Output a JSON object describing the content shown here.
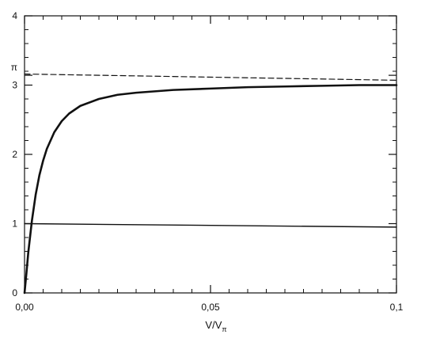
{
  "chart_data": {
    "type": "line",
    "title": "",
    "xlabel": "V/V",
    "xlabel_subscript": "π",
    "ylabel": "",
    "xlim": [
      0,
      0.1
    ],
    "ylim": [
      0,
      4
    ],
    "x_ticks": [
      {
        "value": 0,
        "label": "0,00"
      },
      {
        "value": 0.05,
        "label": "0,05"
      },
      {
        "value": 0.1,
        "label": "0,1"
      }
    ],
    "y_ticks": [
      {
        "value": 0,
        "label": "0"
      },
      {
        "value": 1,
        "label": "1"
      },
      {
        "value": 2,
        "label": "2"
      },
      {
        "value": 3,
        "label": "3"
      },
      {
        "value": 3.1416,
        "label": "π"
      },
      {
        "value": 4,
        "label": "4"
      }
    ],
    "grid": false,
    "legend": "none",
    "series": [
      {
        "style": "solid-thick",
        "color": "#111111",
        "points": [
          [
            0.0,
            0.0
          ],
          [
            0.0005,
            0.28
          ],
          [
            0.001,
            0.58
          ],
          [
            0.002,
            1.05
          ],
          [
            0.003,
            1.42
          ],
          [
            0.004,
            1.7
          ],
          [
            0.005,
            1.91
          ],
          [
            0.006,
            2.08
          ],
          [
            0.008,
            2.32
          ],
          [
            0.01,
            2.48
          ],
          [
            0.012,
            2.59
          ],
          [
            0.015,
            2.7
          ],
          [
            0.02,
            2.8
          ],
          [
            0.025,
            2.86
          ],
          [
            0.03,
            2.89
          ],
          [
            0.04,
            2.93
          ],
          [
            0.05,
            2.95
          ],
          [
            0.06,
            2.97
          ],
          [
            0.07,
            2.98
          ],
          [
            0.08,
            2.99
          ],
          [
            0.09,
            3.0
          ],
          [
            0.1,
            3.0
          ]
        ]
      },
      {
        "style": "dashed",
        "color": "#111111",
        "points": [
          [
            0.0,
            3.16
          ],
          [
            0.1,
            3.07
          ]
        ]
      },
      {
        "style": "solid-thin",
        "color": "#111111",
        "points": [
          [
            0.0,
            1.0
          ],
          [
            0.1,
            0.95
          ]
        ]
      }
    ]
  }
}
